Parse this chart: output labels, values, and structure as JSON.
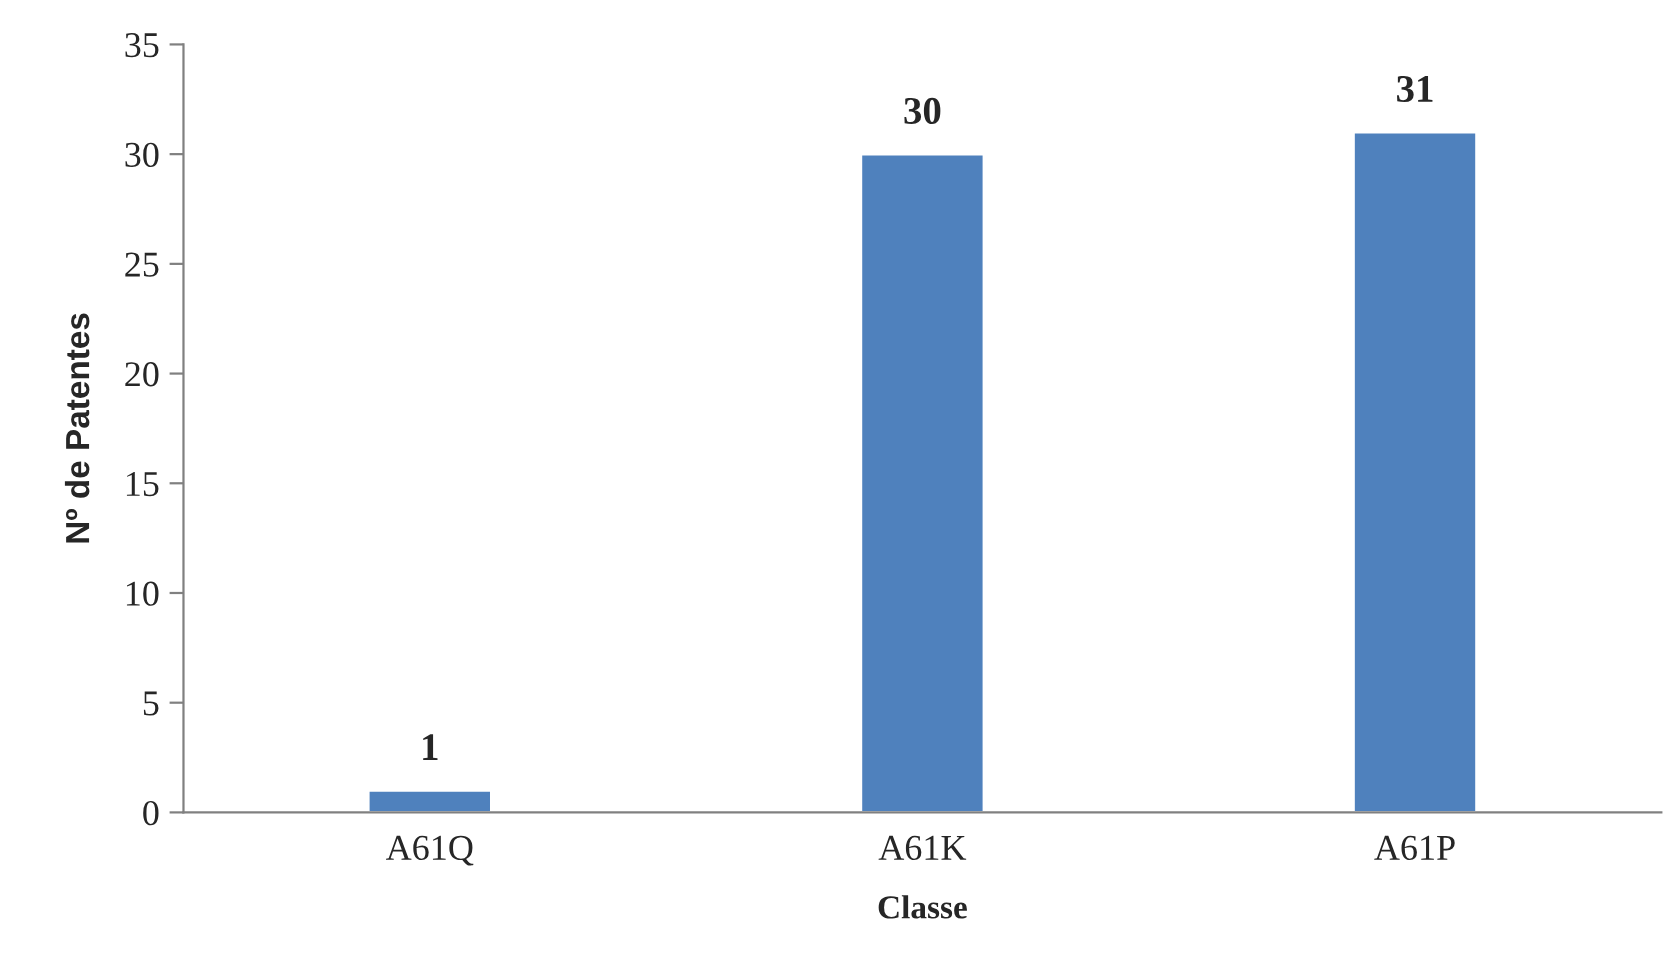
{
  "chart_data": {
    "type": "bar",
    "xlabel": "Classe",
    "ylabel": "Nº de Patentes",
    "categories": [
      "A61Q",
      "A61K",
      "A61P"
    ],
    "values": [
      1,
      30,
      31
    ],
    "color": "#4f81bd",
    "ylim": [
      0,
      35
    ],
    "yticks": [
      0,
      5,
      10,
      15,
      20,
      25,
      30,
      35
    ],
    "grid": false,
    "data_labels": true
  }
}
